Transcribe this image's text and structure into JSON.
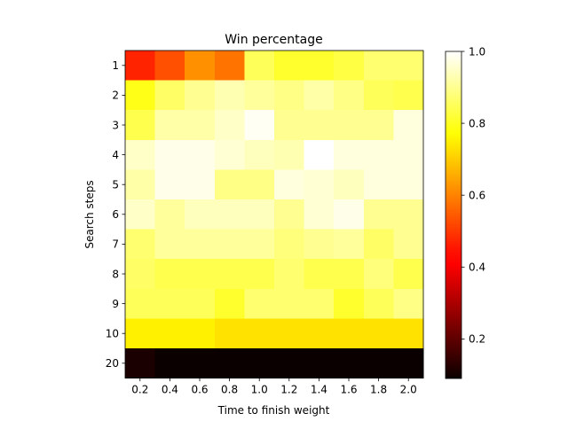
{
  "chart_data": {
    "type": "heatmap",
    "title": "Win percentage",
    "xlabel": "Time to finish weight",
    "ylabel": "Search steps",
    "x_categories": [
      "0.2",
      "0.4",
      "0.6",
      "0.8",
      "1.0",
      "1.2",
      "1.4",
      "1.6",
      "1.8",
      "2.0"
    ],
    "y_categories": [
      "1",
      "2",
      "3",
      "4",
      "5",
      "6",
      "7",
      "8",
      "9",
      "10",
      "20"
    ],
    "values": [
      [
        0.47,
        0.53,
        0.62,
        0.58,
        0.85,
        0.81,
        0.81,
        0.83,
        0.87,
        0.87
      ],
      [
        0.79,
        0.86,
        0.9,
        0.93,
        0.91,
        0.89,
        0.92,
        0.89,
        0.85,
        0.84
      ],
      [
        0.84,
        0.92,
        0.92,
        0.95,
        0.99,
        0.9,
        0.9,
        0.9,
        0.9,
        0.97
      ],
      [
        0.95,
        0.98,
        0.98,
        0.96,
        0.94,
        0.93,
        1.0,
        0.97,
        0.97,
        0.97
      ],
      [
        0.92,
        0.98,
        0.98,
        0.89,
        0.89,
        0.97,
        0.96,
        0.94,
        0.97,
        0.97
      ],
      [
        0.95,
        0.91,
        0.94,
        0.94,
        0.94,
        0.9,
        0.96,
        0.98,
        0.9,
        0.9
      ],
      [
        0.87,
        0.91,
        0.91,
        0.91,
        0.91,
        0.88,
        0.9,
        0.91,
        0.86,
        0.9
      ],
      [
        0.86,
        0.84,
        0.84,
        0.84,
        0.84,
        0.87,
        0.84,
        0.84,
        0.88,
        0.84
      ],
      [
        0.85,
        0.85,
        0.85,
        0.81,
        0.87,
        0.87,
        0.87,
        0.81,
        0.85,
        0.89
      ],
      [
        0.75,
        0.75,
        0.75,
        0.73,
        0.73,
        0.73,
        0.73,
        0.73,
        0.73,
        0.73
      ],
      [
        0.11,
        0.09,
        0.09,
        0.09,
        0.09,
        0.09,
        0.09,
        0.09,
        0.09,
        0.09
      ]
    ],
    "colormap": "hot",
    "vmin": 0.09,
    "vmax": 1.0,
    "colorbar_ticks": [
      "0.2",
      "0.4",
      "0.6",
      "0.8",
      "1.0"
    ],
    "colorbar_tick_values": [
      0.2,
      0.4,
      0.6,
      0.8,
      1.0
    ],
    "grid": false,
    "legend": "colorbar-right"
  }
}
